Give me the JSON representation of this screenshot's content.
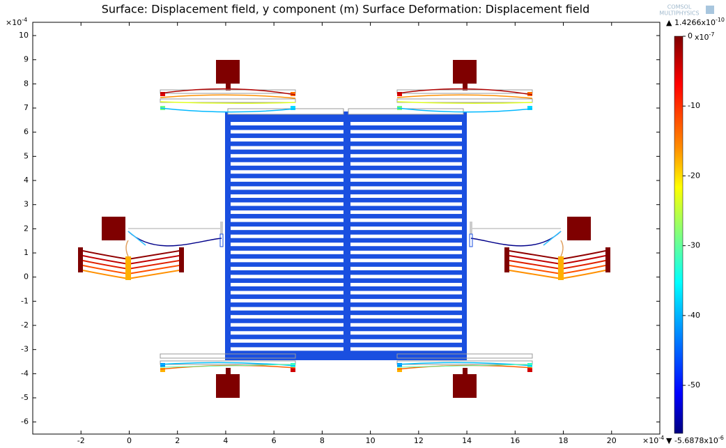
{
  "chart_data": {
    "type": "surface",
    "title": "Surface: Displacement field, y component (m) Surface Deformation: Displacement field",
    "logo": [
      "COMSOL",
      "MULTIPHYSICS"
    ],
    "xlim": [
      -4,
      22
    ],
    "ylim": [
      -6.5,
      10.55
    ],
    "xticks": [
      -2,
      0,
      2,
      4,
      6,
      8,
      10,
      12,
      14,
      16,
      18,
      20
    ],
    "yticks": [
      -6,
      -5,
      -4,
      -3,
      -2,
      -1,
      0,
      1,
      2,
      3,
      4,
      5,
      6,
      7,
      8,
      9,
      10
    ],
    "x_exponent": {
      "base": "×10",
      "power": "-4"
    },
    "y_exponent": {
      "base": "×10",
      "power": "-4"
    },
    "colorbar": {
      "lim": [
        -56.878,
        0.0014266
      ],
      "ticks": [
        0,
        -10,
        -20,
        -30,
        -40,
        -50
      ],
      "exponent": {
        "base": "x10",
        "power": "-7"
      },
      "max_label": {
        "text": "▲ 1.4266x10",
        "power": "-10"
      },
      "min_label": {
        "text": "▼ -5.6878x10",
        "power": "-6"
      }
    }
  }
}
